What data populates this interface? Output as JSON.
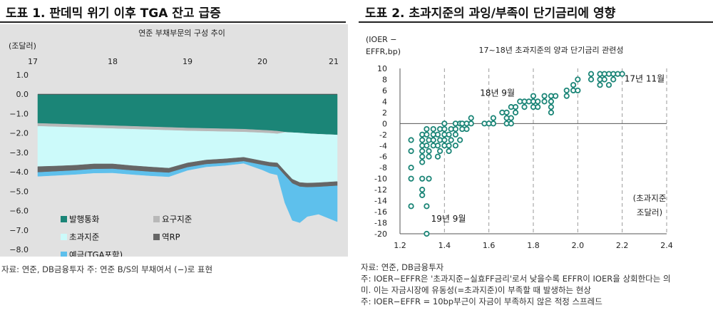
{
  "panels": {
    "left": {
      "title": "도표 1. 판데믹 위기 이후 TGA 잔고 급증",
      "footer": "자료: 연준, DB금융투자        주: 연준 B/S의 부채여서 (−)로 표현"
    },
    "right": {
      "title": "도표 2. 초과지준의 과잉/부족이 단기금리에 영향",
      "footer_lines": [
        "자료: 연준, DB금융투자",
        "주: IOER−EFFR은 '초과지준−실효FF금리'로서 낮을수록 EFFR이 IOER을 상회한다는 의",
        "미. 이는 자금시장에 유동성(=초과지준)이 부족할 때 발생하는 현상",
        "주: IOER−EFFR = 10bp부근이 자금이 부족하지 않은 적정 스프레드"
      ]
    }
  },
  "chart_data": [
    {
      "type": "area",
      "title": "연준 부채부문의 구성 추이",
      "ylabel": "(조달러)",
      "x_ticks": [
        "17",
        "18",
        "19",
        "20",
        "21"
      ],
      "x_tick_positions": [
        2017.0,
        2018.0,
        2019.0,
        2020.0,
        2021.0
      ],
      "xlim": [
        2017.0,
        2021.0
      ],
      "ylim": [
        -8.0,
        1.0
      ],
      "y_ticks": [
        1.0,
        0.0,
        -1.0,
        -2.0,
        -3.0,
        -4.0,
        -5.0,
        -6.0,
        -7.0,
        -8.0
      ],
      "y_tick_labels": [
        "1.0",
        "0.0",
        "−1.0",
        "−2.0",
        "−3.0",
        "−4.0",
        "−5.0",
        "−6.0",
        "−7.0",
        "−8.0"
      ],
      "legend": [
        "발행통화",
        "요구지준",
        "초과지준",
        "역RP",
        "예금(TGA포함)"
      ],
      "colors": {
        "발행통화": "#1b8577",
        "요구지준": "#b8b8b8",
        "초과지준": "#ccfafa",
        "역RP": "#666666",
        "예금(TGA포함)": "#5ec0ec"
      },
      "x": [
        2017.0,
        2017.25,
        2017.5,
        2017.75,
        2018.0,
        2018.25,
        2018.5,
        2018.75,
        2019.0,
        2019.25,
        2019.5,
        2019.75,
        2020.0,
        2020.1,
        2020.2,
        2020.3,
        2020.4,
        2020.5,
        2020.6,
        2020.75,
        2021.0
      ],
      "series": [
        {
          "name": "발행통화",
          "values": [
            -1.5,
            -1.53,
            -1.56,
            -1.59,
            -1.62,
            -1.65,
            -1.68,
            -1.71,
            -1.74,
            -1.76,
            -1.78,
            -1.8,
            -1.85,
            -1.87,
            -1.9,
            -1.95,
            -1.98,
            -2.0,
            -2.03,
            -2.06,
            -2.1
          ]
        },
        {
          "name": "요구지준",
          "values": [
            -0.15,
            -0.15,
            -0.15,
            -0.15,
            -0.15,
            -0.15,
            -0.15,
            -0.15,
            -0.15,
            -0.15,
            -0.15,
            -0.15,
            -0.14,
            -0.14,
            -0.14,
            -0.02,
            0.0,
            0.0,
            0.0,
            0.0,
            0.0
          ]
        },
        {
          "name": "초과지준",
          "values": [
            -2.08,
            -2.02,
            -1.95,
            -1.85,
            -1.82,
            -1.88,
            -1.92,
            -1.95,
            -1.65,
            -1.48,
            -1.4,
            -1.3,
            -1.45,
            -1.5,
            -1.5,
            -2.0,
            -2.4,
            -2.55,
            -2.55,
            -2.5,
            -2.4
          ]
        },
        {
          "name": "역RP",
          "values": [
            -0.3,
            -0.28,
            -0.27,
            -0.27,
            -0.26,
            -0.25,
            -0.25,
            -0.24,
            -0.23,
            -0.22,
            -0.22,
            -0.21,
            -0.21,
            -0.21,
            -0.22,
            -0.22,
            -0.22,
            -0.22,
            -0.22,
            -0.22,
            -0.22
          ]
        },
        {
          "name": "예금(TGA포함)",
          "values": [
            -0.2,
            -0.2,
            -0.2,
            -0.2,
            -0.2,
            -0.2,
            -0.2,
            -0.2,
            -0.15,
            -0.13,
            -0.12,
            -0.1,
            -0.25,
            -0.35,
            -0.4,
            -1.4,
            -1.9,
            -1.85,
            -1.5,
            -1.4,
            -1.85
          ]
        }
      ]
    },
    {
      "type": "scatter",
      "title": "17~18년 초과지준의 양과 단기금리 관련성",
      "ylabel": "(IOER − EFFR,bp)",
      "xlabel": "(초과지준 조달러)",
      "xlim": [
        1.2,
        2.4
      ],
      "ylim": [
        -20,
        10
      ],
      "x_ticks": [
        1.2,
        1.4,
        1.6,
        1.8,
        2.0,
        2.2,
        2.4
      ],
      "x_tick_labels": [
        "1.2",
        "1.4",
        "1.6",
        "1.8",
        "2.0",
        "2.2",
        "2.4"
      ],
      "y_ticks": [
        10,
        8,
        6,
        4,
        2,
        0,
        -2,
        -4,
        -6,
        -8,
        -10,
        -12,
        -14,
        -16,
        -18,
        -20
      ],
      "annotations": [
        {
          "text": "17년 11월",
          "x": 2.21,
          "y": 7.6
        },
        {
          "text": "18년 9월",
          "x": 1.56,
          "y": 5.0
        },
        {
          "text": "19년 9월",
          "x": 1.34,
          "y": -17.8
        }
      ],
      "points": [
        [
          1.25,
          -3
        ],
        [
          1.25,
          -5
        ],
        [
          1.25,
          -8
        ],
        [
          1.25,
          -10
        ],
        [
          1.25,
          -15
        ],
        [
          1.3,
          -2
        ],
        [
          1.3,
          -3
        ],
        [
          1.3,
          -4
        ],
        [
          1.3,
          -5
        ],
        [
          1.3,
          -6
        ],
        [
          1.3,
          -7
        ],
        [
          1.3,
          -10
        ],
        [
          1.3,
          -12
        ],
        [
          1.3,
          -13
        ],
        [
          1.32,
          -1
        ],
        [
          1.32,
          -2
        ],
        [
          1.32,
          -4
        ],
        [
          1.32,
          -15
        ],
        [
          1.32,
          -20
        ],
        [
          1.33,
          -3
        ],
        [
          1.33,
          -5
        ],
        [
          1.33,
          -6
        ],
        [
          1.33,
          -10
        ],
        [
          1.35,
          -1
        ],
        [
          1.35,
          -2
        ],
        [
          1.35,
          -3
        ],
        [
          1.35,
          -4
        ],
        [
          1.37,
          -2
        ],
        [
          1.37,
          -4
        ],
        [
          1.37,
          -6
        ],
        [
          1.38,
          -1
        ],
        [
          1.38,
          -3
        ],
        [
          1.38,
          -5
        ],
        [
          1.4,
          0
        ],
        [
          1.4,
          -1
        ],
        [
          1.4,
          -2
        ],
        [
          1.4,
          -3
        ],
        [
          1.4,
          -4
        ],
        [
          1.42,
          -2
        ],
        [
          1.42,
          -4
        ],
        [
          1.42,
          -5
        ],
        [
          1.43,
          -1
        ],
        [
          1.43,
          -3
        ],
        [
          1.45,
          0
        ],
        [
          1.45,
          -1
        ],
        [
          1.45,
          -2
        ],
        [
          1.45,
          -4
        ],
        [
          1.47,
          0
        ],
        [
          1.47,
          -3
        ],
        [
          1.48,
          0
        ],
        [
          1.48,
          -1
        ],
        [
          1.5,
          0
        ],
        [
          1.5,
          -1
        ],
        [
          1.52,
          0
        ],
        [
          1.52,
          1
        ],
        [
          1.58,
          0
        ],
        [
          1.6,
          0
        ],
        [
          1.62,
          0
        ],
        [
          1.62,
          1
        ],
        [
          1.66,
          2
        ],
        [
          1.68,
          1
        ],
        [
          1.68,
          2
        ],
        [
          1.68,
          0
        ],
        [
          1.7,
          0
        ],
        [
          1.7,
          1
        ],
        [
          1.7,
          3
        ],
        [
          1.72,
          2
        ],
        [
          1.72,
          3
        ],
        [
          1.74,
          4
        ],
        [
          1.76,
          3
        ],
        [
          1.76,
          4
        ],
        [
          1.78,
          4
        ],
        [
          1.8,
          3
        ],
        [
          1.8,
          4
        ],
        [
          1.8,
          5
        ],
        [
          1.82,
          3
        ],
        [
          1.82,
          4
        ],
        [
          1.85,
          4
        ],
        [
          1.85,
          5
        ],
        [
          1.88,
          2
        ],
        [
          1.88,
          3
        ],
        [
          1.88,
          4
        ],
        [
          1.88,
          5
        ],
        [
          1.9,
          5
        ],
        [
          1.95,
          5
        ],
        [
          1.95,
          6
        ],
        [
          1.98,
          6
        ],
        [
          1.98,
          7
        ],
        [
          2.0,
          6
        ],
        [
          2.0,
          8
        ],
        [
          2.06,
          8
        ],
        [
          2.06,
          9
        ],
        [
          2.1,
          7
        ],
        [
          2.1,
          8
        ],
        [
          2.1,
          9
        ],
        [
          2.12,
          8
        ],
        [
          2.12,
          9
        ],
        [
          2.14,
          7
        ],
        [
          2.14,
          9
        ],
        [
          2.16,
          8
        ],
        [
          2.16,
          9
        ],
        [
          2.18,
          9
        ],
        [
          2.2,
          9
        ]
      ]
    }
  ]
}
